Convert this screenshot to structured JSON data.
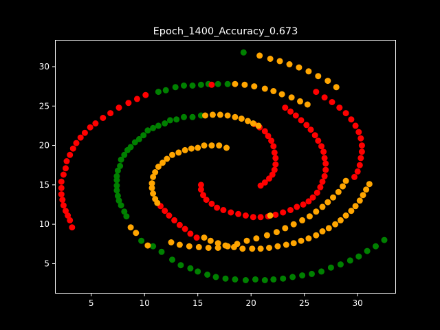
{
  "chart_data": {
    "type": "scatter",
    "title": "Epoch_1400_Accuracy_0.673",
    "xlabel": "",
    "ylabel": "",
    "xlim": [
      1.6,
      33.6
    ],
    "ylim": [
      1.2,
      33.4
    ],
    "xticks": [
      5,
      10,
      15,
      20,
      25,
      30
    ],
    "yticks": [
      5,
      10,
      15,
      20,
      25,
      30
    ],
    "grid": false,
    "colors": {
      "background": "#000000",
      "axes": "#ffffff",
      "green": "#008000",
      "red": "#ff0000",
      "orange": "#ffa500"
    },
    "series": [
      {
        "color": "green",
        "points": [
          [
            19.3,
            31.8
          ],
          [
            17.8,
            27.8
          ],
          [
            16.9,
            27.8
          ],
          [
            16.0,
            27.8
          ],
          [
            15.3,
            27.7
          ],
          [
            14.5,
            27.6
          ],
          [
            13.7,
            27.6
          ],
          [
            12.9,
            27.4
          ],
          [
            12.0,
            27.0
          ],
          [
            11.3,
            26.8
          ],
          [
            15.3,
            23.8
          ],
          [
            14.5,
            23.6
          ],
          [
            13.7,
            23.6
          ],
          [
            13.0,
            23.3
          ],
          [
            12.4,
            23.2
          ],
          [
            11.9,
            22.8
          ],
          [
            11.3,
            22.5
          ],
          [
            10.8,
            22.2
          ],
          [
            10.3,
            21.9
          ],
          [
            9.9,
            21.3
          ],
          [
            9.5,
            20.8
          ],
          [
            9.1,
            20.4
          ],
          [
            8.7,
            19.8
          ],
          [
            8.4,
            19.4
          ],
          [
            8.1,
            18.8
          ],
          [
            7.8,
            18.2
          ],
          [
            7.7,
            17.4
          ],
          [
            7.5,
            16.8
          ],
          [
            7.4,
            16.1
          ],
          [
            7.4,
            15.6
          ],
          [
            7.4,
            14.9
          ],
          [
            7.4,
            14.3
          ],
          [
            7.5,
            13.6
          ],
          [
            7.6,
            13.0
          ],
          [
            7.8,
            12.4
          ],
          [
            8.1,
            11.6
          ],
          [
            8.3,
            11.0
          ],
          [
            9.7,
            7.9
          ],
          [
            10.8,
            7.2
          ],
          [
            11.6,
            6.5
          ],
          [
            12.6,
            5.5
          ],
          [
            13.4,
            4.8
          ],
          [
            14.3,
            4.4
          ],
          [
            15.0,
            4.0
          ],
          [
            15.9,
            3.6
          ],
          [
            16.7,
            3.3
          ],
          [
            17.6,
            3.1
          ],
          [
            18.5,
            3.0
          ],
          [
            19.5,
            2.9
          ],
          [
            20.4,
            3.0
          ],
          [
            21.3,
            2.9
          ],
          [
            22.1,
            3.0
          ],
          [
            23.0,
            3.1
          ],
          [
            23.9,
            3.3
          ],
          [
            24.8,
            3.5
          ],
          [
            25.7,
            3.7
          ],
          [
            26.6,
            4.0
          ],
          [
            27.5,
            4.5
          ],
          [
            28.4,
            4.9
          ],
          [
            29.3,
            5.4
          ],
          [
            30.1,
            5.9
          ],
          [
            30.9,
            6.6
          ],
          [
            31.7,
            7.2
          ],
          [
            32.5,
            8.0
          ]
        ]
      },
      {
        "color": "red",
        "points": [
          [
            10.1,
            26.4
          ],
          [
            9.3,
            25.9
          ],
          [
            8.5,
            25.4
          ],
          [
            7.6,
            24.8
          ],
          [
            6.8,
            24.1
          ],
          [
            6.1,
            23.5
          ],
          [
            5.4,
            22.8
          ],
          [
            4.9,
            22.3
          ],
          [
            4.4,
            21.6
          ],
          [
            4.0,
            21.0
          ],
          [
            3.6,
            20.3
          ],
          [
            3.3,
            19.6
          ],
          [
            3.0,
            18.8
          ],
          [
            2.7,
            18.0
          ],
          [
            2.6,
            17.1
          ],
          [
            2.4,
            16.3
          ],
          [
            2.2,
            15.4
          ],
          [
            2.2,
            14.6
          ],
          [
            2.2,
            13.8
          ],
          [
            2.3,
            13.1
          ],
          [
            2.4,
            12.4
          ],
          [
            2.6,
            11.7
          ],
          [
            2.8,
            11.1
          ],
          [
            3.0,
            10.5
          ],
          [
            3.2,
            9.6
          ],
          [
            16.3,
            27.7
          ],
          [
            26.1,
            26.8
          ],
          [
            26.9,
            26.1
          ],
          [
            27.6,
            25.5
          ],
          [
            28.3,
            24.8
          ],
          [
            28.9,
            24.1
          ],
          [
            29.4,
            23.3
          ],
          [
            29.8,
            22.5
          ],
          [
            30.1,
            21.7
          ],
          [
            30.3,
            20.9
          ],
          [
            30.4,
            20.0
          ],
          [
            30.4,
            19.2
          ],
          [
            30.3,
            18.4
          ],
          [
            30.2,
            17.5
          ],
          [
            30.0,
            16.7
          ],
          [
            29.7,
            16.0
          ],
          [
            23.2,
            24.8
          ],
          [
            23.7,
            24.3
          ],
          [
            24.2,
            23.8
          ],
          [
            24.7,
            23.2
          ],
          [
            25.2,
            22.6
          ],
          [
            25.6,
            22.0
          ],
          [
            26.0,
            21.3
          ],
          [
            26.3,
            20.6
          ],
          [
            26.6,
            19.9
          ],
          [
            26.8,
            19.2
          ],
          [
            26.9,
            18.4
          ],
          [
            27.0,
            17.7
          ],
          [
            27.0,
            16.9
          ],
          [
            26.9,
            16.1
          ],
          [
            26.7,
            15.4
          ],
          [
            26.5,
            14.7
          ],
          [
            26.2,
            14.0
          ],
          [
            25.8,
            13.4
          ],
          [
            25.4,
            12.9
          ],
          [
            24.9,
            12.5
          ],
          [
            24.3,
            12.2
          ],
          [
            23.7,
            11.8
          ],
          [
            23.0,
            11.5
          ],
          [
            22.3,
            11.2
          ],
          [
            21.6,
            11.0
          ],
          [
            20.9,
            10.9
          ],
          [
            20.2,
            10.9
          ],
          [
            19.5,
            11.1
          ],
          [
            18.8,
            11.3
          ],
          [
            18.1,
            11.5
          ],
          [
            17.4,
            11.8
          ],
          [
            16.8,
            12.1
          ],
          [
            16.3,
            12.6
          ],
          [
            15.8,
            13.1
          ],
          [
            15.5,
            13.7
          ],
          [
            15.3,
            14.4
          ],
          [
            15.3,
            15.0
          ],
          [
            20.3,
            22.7
          ],
          [
            20.8,
            22.3
          ],
          [
            21.3,
            21.8
          ],
          [
            21.6,
            21.2
          ],
          [
            21.9,
            20.6
          ],
          [
            22.1,
            19.9
          ],
          [
            22.2,
            19.1
          ],
          [
            22.3,
            18.4
          ],
          [
            22.3,
            17.6
          ],
          [
            22.2,
            16.9
          ],
          [
            22.0,
            16.3
          ],
          [
            21.7,
            15.8
          ],
          [
            21.3,
            15.3
          ],
          [
            20.9,
            14.9
          ],
          [
            11.5,
            12.3
          ],
          [
            11.9,
            11.7
          ],
          [
            12.3,
            11.1
          ],
          [
            12.8,
            10.5
          ],
          [
            13.3,
            9.9
          ],
          [
            13.8,
            9.4
          ],
          [
            14.3,
            8.8
          ],
          [
            14.9,
            8.3
          ]
        ]
      },
      {
        "color": "orange",
        "points": [
          [
            20.8,
            31.4
          ],
          [
            21.8,
            31.0
          ],
          [
            22.7,
            30.7
          ],
          [
            23.6,
            30.3
          ],
          [
            24.5,
            29.9
          ],
          [
            25.4,
            29.4
          ],
          [
            26.3,
            28.8
          ],
          [
            27.2,
            28.2
          ],
          [
            28.0,
            27.4
          ],
          [
            18.5,
            27.8
          ],
          [
            19.4,
            27.7
          ],
          [
            20.3,
            27.5
          ],
          [
            21.3,
            27.2
          ],
          [
            22.1,
            26.9
          ],
          [
            22.9,
            26.5
          ],
          [
            23.8,
            26.1
          ],
          [
            24.6,
            25.6
          ],
          [
            25.3,
            25.2
          ],
          [
            15.7,
            23.8
          ],
          [
            16.4,
            23.9
          ],
          [
            17.1,
            23.9
          ],
          [
            17.8,
            23.8
          ],
          [
            18.5,
            23.6
          ],
          [
            19.1,
            23.4
          ],
          [
            19.7,
            23.1
          ],
          [
            20.2,
            22.8
          ],
          [
            20.7,
            22.5
          ],
          [
            28.9,
            15.5
          ],
          [
            28.6,
            14.8
          ],
          [
            28.2,
            14.1
          ],
          [
            27.7,
            13.4
          ],
          [
            27.2,
            12.8
          ],
          [
            26.7,
            12.2
          ],
          [
            26.1,
            11.6
          ],
          [
            25.5,
            11.0
          ],
          [
            24.8,
            10.5
          ],
          [
            24.0,
            10.0
          ],
          [
            23.2,
            9.5
          ],
          [
            22.4,
            9.0
          ],
          [
            21.5,
            8.6
          ],
          [
            20.5,
            8.2
          ],
          [
            19.6,
            7.9
          ],
          [
            18.7,
            7.5
          ],
          [
            17.8,
            7.2
          ],
          [
            16.9,
            7.0
          ],
          [
            16.0,
            7.0
          ],
          [
            15.1,
            7.1
          ],
          [
            14.2,
            7.2
          ],
          [
            13.3,
            7.4
          ],
          [
            12.5,
            7.7
          ],
          [
            17.7,
            19.7
          ],
          [
            17.0,
            20.0
          ],
          [
            16.3,
            20.0
          ],
          [
            15.6,
            20.0
          ],
          [
            15.0,
            19.7
          ],
          [
            14.4,
            19.6
          ],
          [
            13.8,
            19.4
          ],
          [
            13.2,
            19.1
          ],
          [
            12.6,
            18.8
          ],
          [
            12.1,
            18.3
          ],
          [
            11.7,
            17.8
          ],
          [
            11.3,
            17.3
          ],
          [
            11.0,
            16.6
          ],
          [
            10.8,
            16.0
          ],
          [
            10.7,
            15.2
          ],
          [
            10.7,
            14.6
          ],
          [
            10.8,
            13.9
          ],
          [
            11.0,
            13.2
          ],
          [
            11.2,
            12.7
          ],
          [
            15.6,
            8.3
          ],
          [
            16.2,
            7.9
          ],
          [
            16.9,
            7.6
          ],
          [
            17.6,
            7.3
          ],
          [
            18.4,
            7.1
          ],
          [
            19.2,
            6.9
          ],
          [
            20.1,
            6.9
          ],
          [
            20.9,
            6.9
          ],
          [
            21.7,
            7.0
          ],
          [
            22.5,
            7.2
          ],
          [
            23.3,
            7.4
          ],
          [
            24.0,
            7.6
          ],
          [
            24.7,
            7.9
          ],
          [
            25.4,
            8.2
          ],
          [
            26.1,
            8.6
          ],
          [
            26.7,
            9.1
          ],
          [
            27.3,
            9.5
          ],
          [
            27.9,
            10.0
          ],
          [
            28.4,
            10.5
          ],
          [
            28.9,
            11.1
          ],
          [
            29.4,
            11.7
          ],
          [
            29.8,
            12.3
          ],
          [
            30.2,
            13.0
          ],
          [
            30.5,
            13.7
          ],
          [
            30.8,
            14.4
          ],
          [
            31.1,
            15.1
          ],
          [
            21.8,
            11.1
          ],
          [
            8.7,
            9.6
          ],
          [
            9.2,
            8.9
          ],
          [
            10.3,
            7.3
          ]
        ]
      }
    ]
  }
}
